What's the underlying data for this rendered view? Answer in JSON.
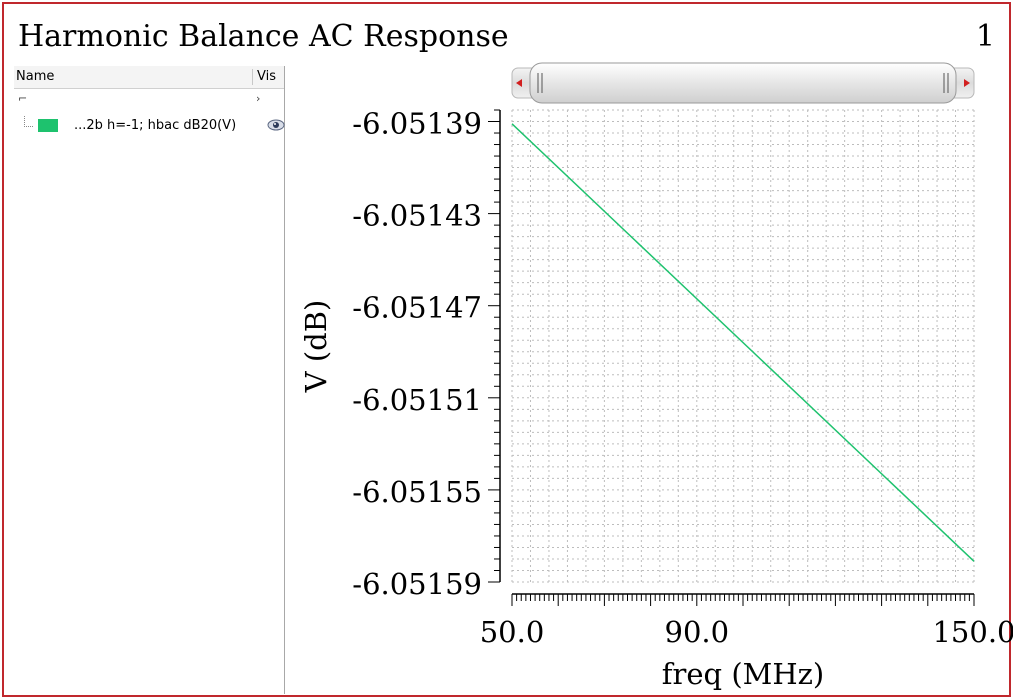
{
  "header": {
    "title": "Harmonic Balance AC Response",
    "plot_number": "1"
  },
  "legend": {
    "columns": {
      "name": "Name",
      "visible": "Vis"
    },
    "root_label": "⌐",
    "root_chevron": "›",
    "items": [
      {
        "label": "...2b h=-1; hbac dB20(V)",
        "color": "#1ec26e",
        "icon": "eye-icon"
      }
    ]
  },
  "colors": {
    "frame_border": "#c0282d",
    "trace": "#1ec26e",
    "grid": "#bdbdbd"
  },
  "chart_data": {
    "type": "line",
    "title": "Harmonic Balance AC Response",
    "xlabel": "freq (MHz)",
    "ylabel": "V (dB)",
    "xlim": [
      50.0,
      150.0
    ],
    "ylim": [
      -6.05159,
      -6.051385
    ],
    "x_ticks": [
      50.0,
      90.0,
      150.0
    ],
    "x_tick_labels": [
      "50.0",
      "90.0",
      "150.0"
    ],
    "y_ticks": [
      -6.05139,
      -6.05143,
      -6.05147,
      -6.05151,
      -6.05155,
      -6.05159
    ],
    "y_tick_labels": [
      "-6.05139",
      "-6.05143",
      "-6.05147",
      "-6.05151",
      "-6.05155",
      "-6.05159"
    ],
    "grid": true,
    "series": [
      {
        "name": "...2b h=-1; hbac dB20(V)",
        "color": "#1ec26e",
        "x": [
          50.0,
          150.0
        ],
        "y": [
          -6.051391,
          -6.051581
        ]
      }
    ]
  }
}
